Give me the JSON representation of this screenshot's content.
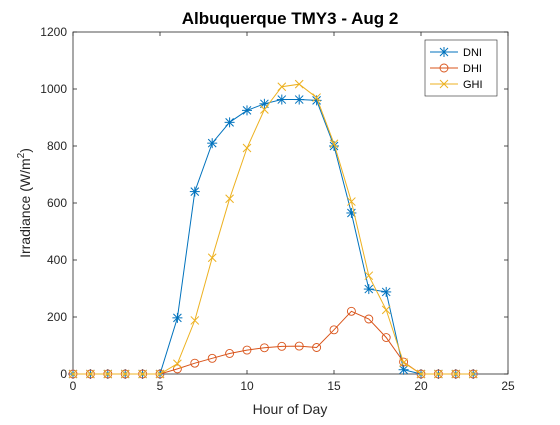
{
  "chart_data": {
    "type": "line",
    "title": "Albuquerque TMY3 - Aug 2",
    "xlabel": "Hour of Day",
    "ylabel_main": "Irradiance (W/m",
    "ylabel_sup": "2",
    "ylabel_close": ")",
    "xlim": [
      0,
      25
    ],
    "ylim": [
      0,
      1200
    ],
    "xticks": [
      0,
      5,
      10,
      15,
      20,
      25
    ],
    "yticks": [
      0,
      200,
      400,
      600,
      800,
      1000,
      1200
    ],
    "xtick_labels": [
      "0",
      "5",
      "10",
      "15",
      "20",
      "25"
    ],
    "ytick_labels": [
      "0",
      "200",
      "400",
      "600",
      "800",
      "1000",
      "1200"
    ],
    "grid": false,
    "legend_position": "top-right",
    "x": [
      0,
      1,
      2,
      3,
      4,
      5,
      6,
      7,
      8,
      9,
      10,
      11,
      12,
      13,
      14,
      15,
      16,
      17,
      18,
      19,
      20,
      21,
      22,
      23
    ],
    "series": [
      {
        "name": "DNI",
        "color": "#0072bd",
        "marker": "asterisk",
        "values": [
          0,
          0,
          0,
          0,
          0,
          0,
          197,
          640,
          810,
          883,
          925,
          948,
          963,
          963,
          960,
          800,
          565,
          298,
          288,
          15,
          0,
          0,
          0,
          0
        ]
      },
      {
        "name": "DHI",
        "color": "#d95319",
        "marker": "circle",
        "values": [
          0,
          0,
          0,
          0,
          0,
          0,
          18,
          38,
          55,
          72,
          84,
          92,
          97,
          98,
          93,
          155,
          220,
          193,
          128,
          42,
          0,
          0,
          0,
          0
        ]
      },
      {
        "name": "GHI",
        "color": "#edb120",
        "marker": "x",
        "values": [
          0,
          0,
          0,
          0,
          0,
          0,
          36,
          188,
          408,
          615,
          793,
          928,
          1008,
          1017,
          970,
          808,
          605,
          345,
          225,
          40,
          0,
          0,
          0,
          0
        ]
      }
    ]
  }
}
